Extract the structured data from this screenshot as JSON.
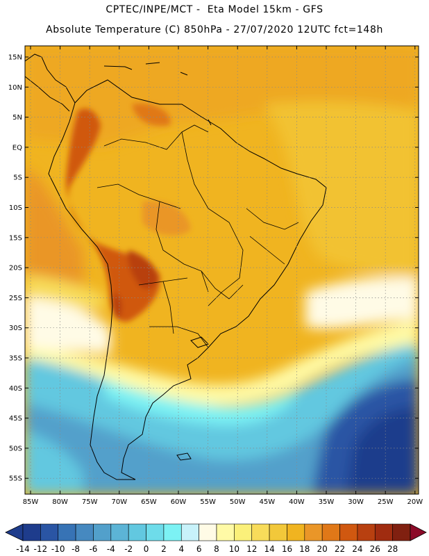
{
  "header": {
    "line1": "CPTEC/INPE/MCT -  Eta Model 15km - GFS",
    "line2": "Absolute Temperature (C) 850hPa - 27/07/2020 12UTC fct=148h"
  },
  "axes": {
    "lat_labels": [
      "15N",
      "10N",
      "5N",
      "EQ",
      "5S",
      "10S",
      "15S",
      "20S",
      "25S",
      "30S",
      "35S",
      "40S",
      "45S",
      "50S",
      "55S"
    ],
    "lon_labels": [
      "85W",
      "80W",
      "75W",
      "70W",
      "65W",
      "60W",
      "55W",
      "50W",
      "45W",
      "40W",
      "35W",
      "30W",
      "25W",
      "20W"
    ]
  },
  "colorbar": {
    "labels": [
      "-14",
      "-12",
      "-10",
      "-8",
      "-6",
      "-4",
      "-2",
      "0",
      "2",
      "4",
      "6",
      "8",
      "10",
      "12",
      "14",
      "16",
      "18",
      "20",
      "22",
      "24",
      "26",
      "28"
    ],
    "colors": [
      "#1e3c8c",
      "#2a55a4",
      "#3773b5",
      "#4689c0",
      "#52a0cb",
      "#5cb4d6",
      "#62c8e0",
      "#6edcea",
      "#7cf2f4",
      "#c8f2fa",
      "#fffbe6",
      "#fffaa6",
      "#fbf07a",
      "#f8dc5a",
      "#f2c83a",
      "#f0b420",
      "#ea9628",
      "#e07818",
      "#d05810",
      "#b84010",
      "#a02c10",
      "#802010"
    ],
    "low_color": "#1e3c8c",
    "high_color": "#8c0a28"
  }
}
